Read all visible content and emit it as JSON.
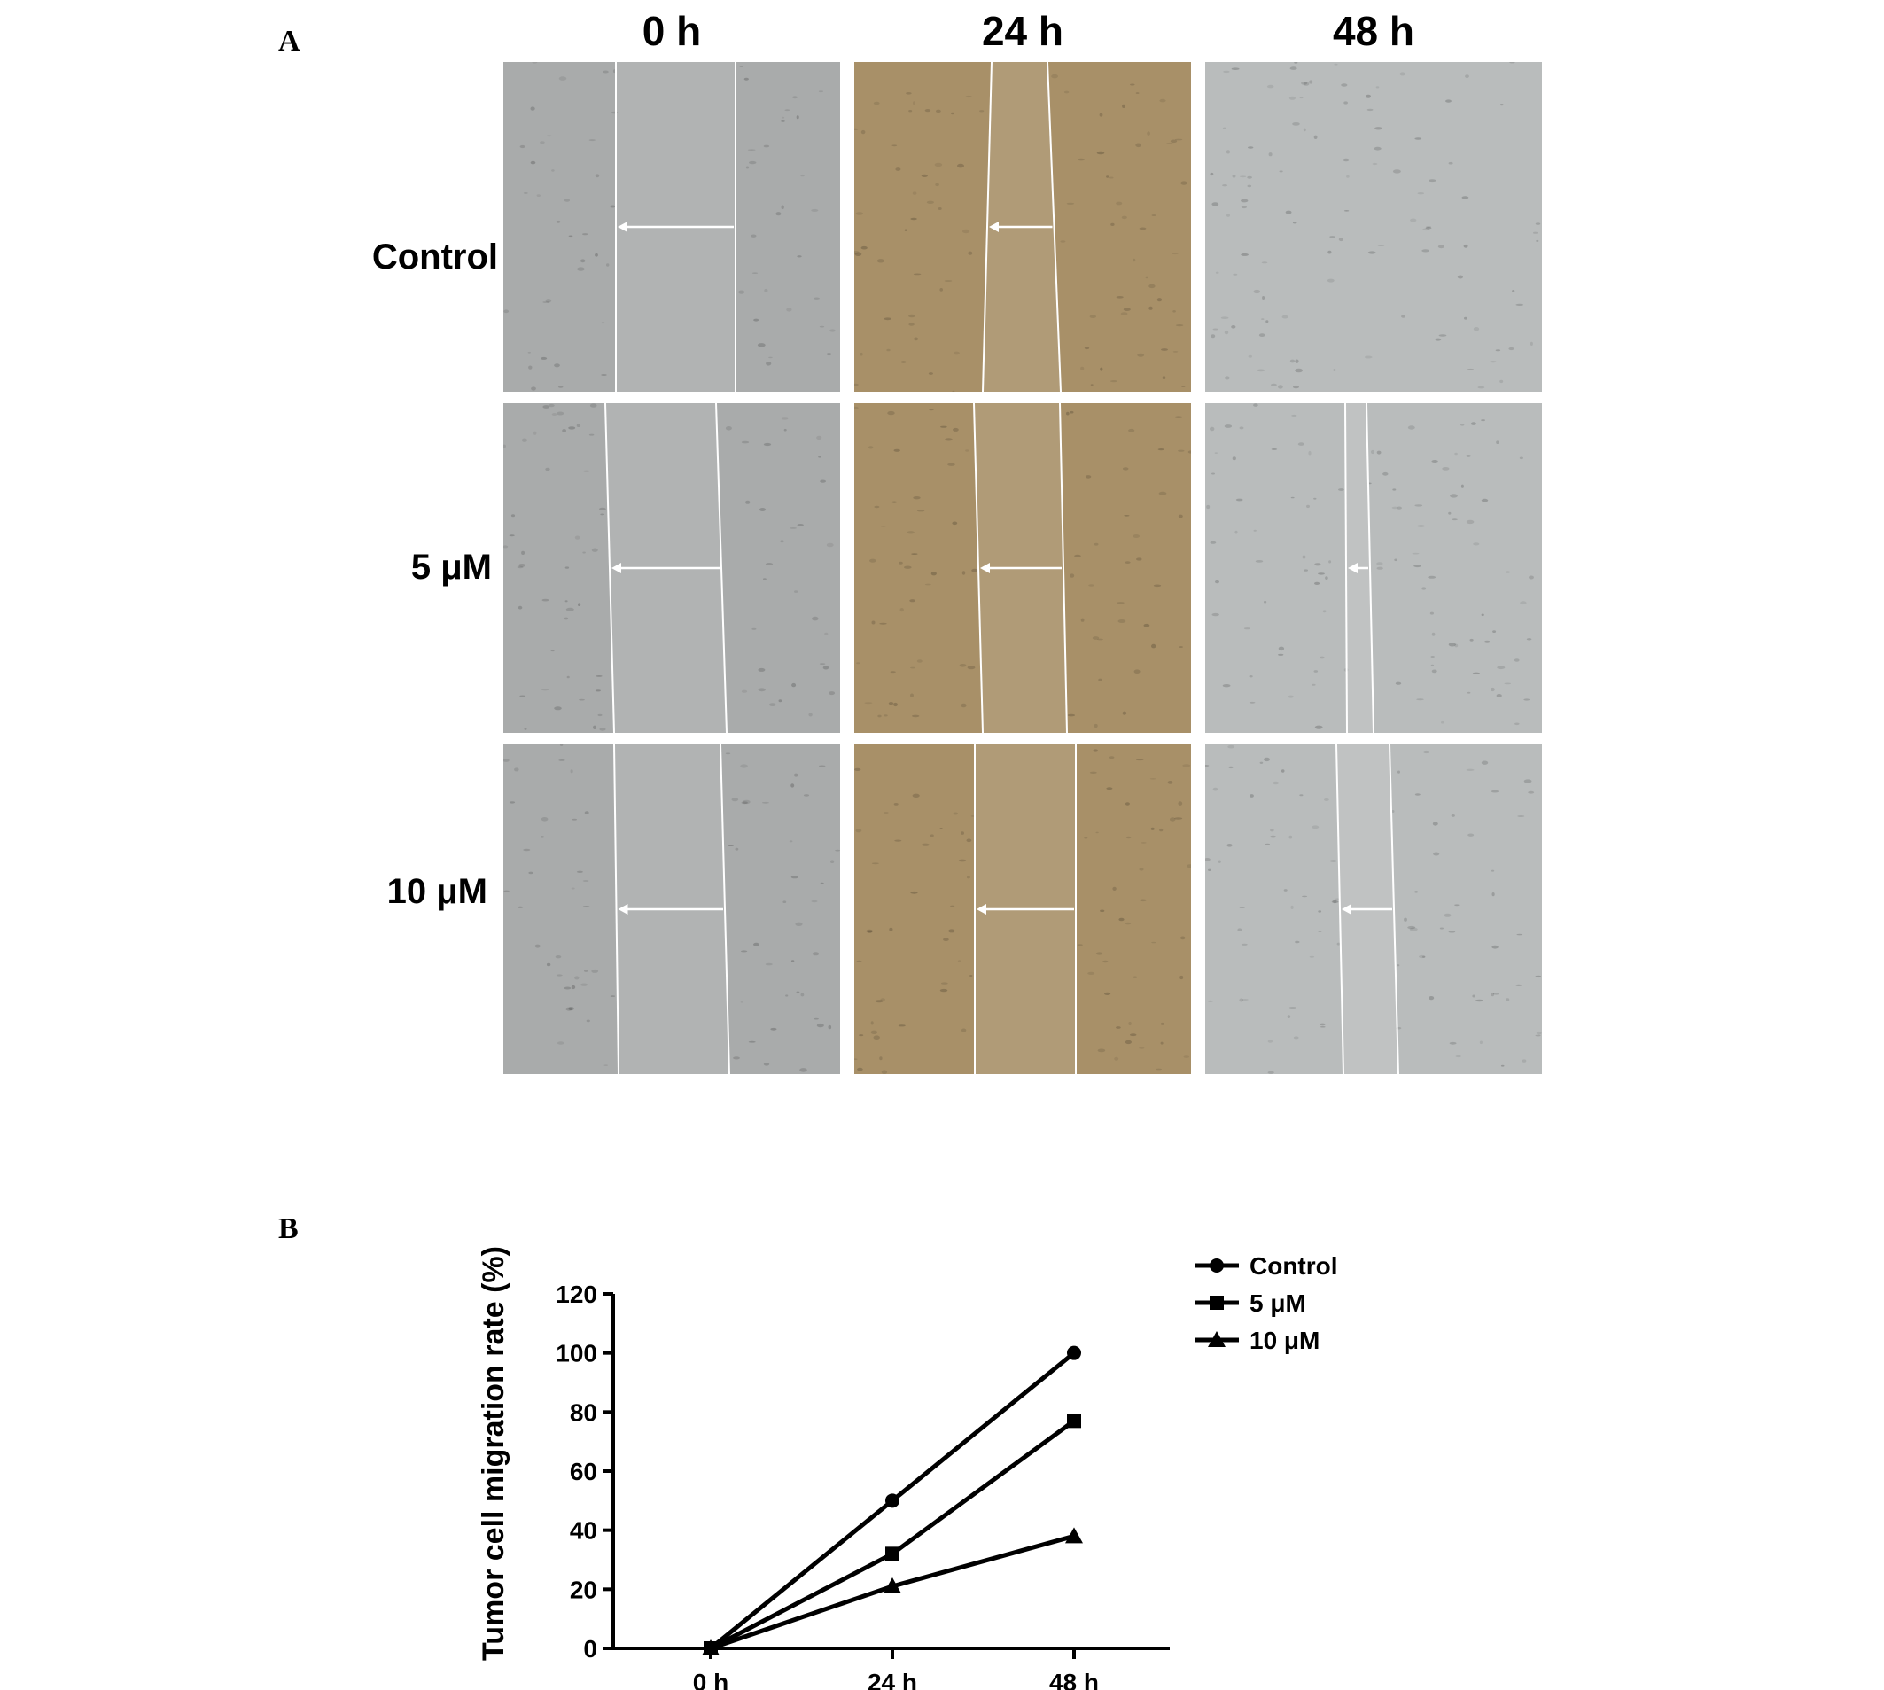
{
  "panel_a": {
    "letter": "A",
    "column_headers": [
      "0 h",
      "24 h",
      "48 h"
    ],
    "row_headers": [
      "Control",
      "5 μM",
      "10 μM"
    ]
  },
  "panel_b": {
    "letter": "B"
  },
  "colors": {
    "micro_gray": "#a9abab",
    "micro_brown": "#a89068",
    "micro_light": "#b9bcbc",
    "scratch_line": "#ffffff",
    "series": "#000000"
  },
  "chart_data": {
    "type": "line",
    "x": [
      "0 h",
      "24 h",
      "48 h"
    ],
    "ylabel": "Tumor cell migration rate (%)",
    "xlabel": "",
    "ylim": [
      0,
      120
    ],
    "yticks": [
      0,
      20,
      40,
      60,
      80,
      100,
      120
    ],
    "grid": false,
    "legend_position": "top-right",
    "series": [
      {
        "name": "Control",
        "marker": "circle",
        "values": [
          0,
          50,
          100
        ]
      },
      {
        "name": "5 μM",
        "marker": "square",
        "values": [
          0,
          32,
          77
        ]
      },
      {
        "name": "10 μM",
        "marker": "triangle",
        "values": [
          0,
          21,
          38
        ]
      }
    ]
  }
}
